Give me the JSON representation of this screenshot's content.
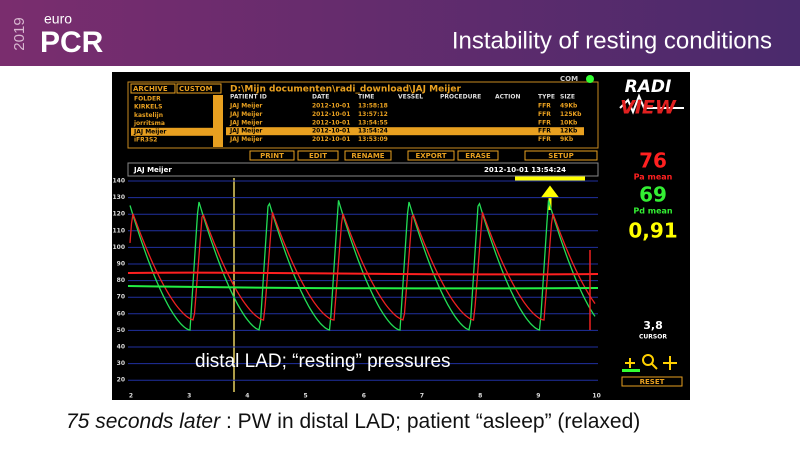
{
  "header": {
    "year": "2019",
    "brand_top": "euro",
    "brand": "PCR",
    "title": "Instability of resting conditions"
  },
  "screen": {
    "com": "COM",
    "tabs": [
      "ARCHIVE",
      "CUSTOM"
    ],
    "folders": [
      "FOLDER",
      "KIRKELS",
      "kastelijn",
      "jorritsma",
      "JAJ Meijer",
      "iFR3S2"
    ],
    "path": "D:\\Mijn documenten\\radi_download\\JAJ Meijer",
    "columns": [
      "PATIENT ID",
      "DATE",
      "TIME",
      "VESSEL",
      "PROCEDURE",
      "ACTION",
      "TYPE",
      "SIZE"
    ],
    "rows": [
      [
        "JAJ Meijer",
        "2012-10-01",
        "13:58:18",
        "FFR",
        "49Kb"
      ],
      [
        "JAJ Meijer",
        "2012-10-01",
        "13:57:12",
        "FFR",
        "125Kb"
      ],
      [
        "JAJ Meijer",
        "2012-10-01",
        "13:54:55",
        "FFR",
        "10Kb"
      ],
      [
        "JAJ Meijer",
        "2012-10-01",
        "13:54:24",
        "FFR",
        "12Kb"
      ],
      [
        "JAJ Meijer",
        "2012-10-01",
        "13:53:09",
        "FFR",
        "9Kb"
      ]
    ],
    "buttons": [
      "PRINT",
      "EDIT",
      "RENAME",
      "EXPORT",
      "ERASE",
      "SETUP"
    ],
    "patient": "JAJ Meijer",
    "timestamp": "2012-10-01 13:54:24",
    "logo": [
      "RADI",
      "VIEW"
    ],
    "pa": {
      "value": "76",
      "label": "Pa mean"
    },
    "pd": {
      "value": "69",
      "label": "Pd mean"
    },
    "ratio": "0,91",
    "cursor": {
      "value": "3,8",
      "label": "CURSOR"
    },
    "reset": "RESET",
    "y_labels": [
      140,
      130,
      120,
      110,
      100,
      90,
      80,
      70,
      60,
      50,
      40,
      30,
      20
    ],
    "x_labels": [
      2,
      3,
      4,
      5,
      6,
      7,
      8,
      9,
      10
    ],
    "overlay": "distal LAD; “resting” pressures"
  },
  "caption": {
    "emphasis": "75 seconds later",
    "text": " : PW in distal LAD; patient “asleep” (relaxed)"
  }
}
